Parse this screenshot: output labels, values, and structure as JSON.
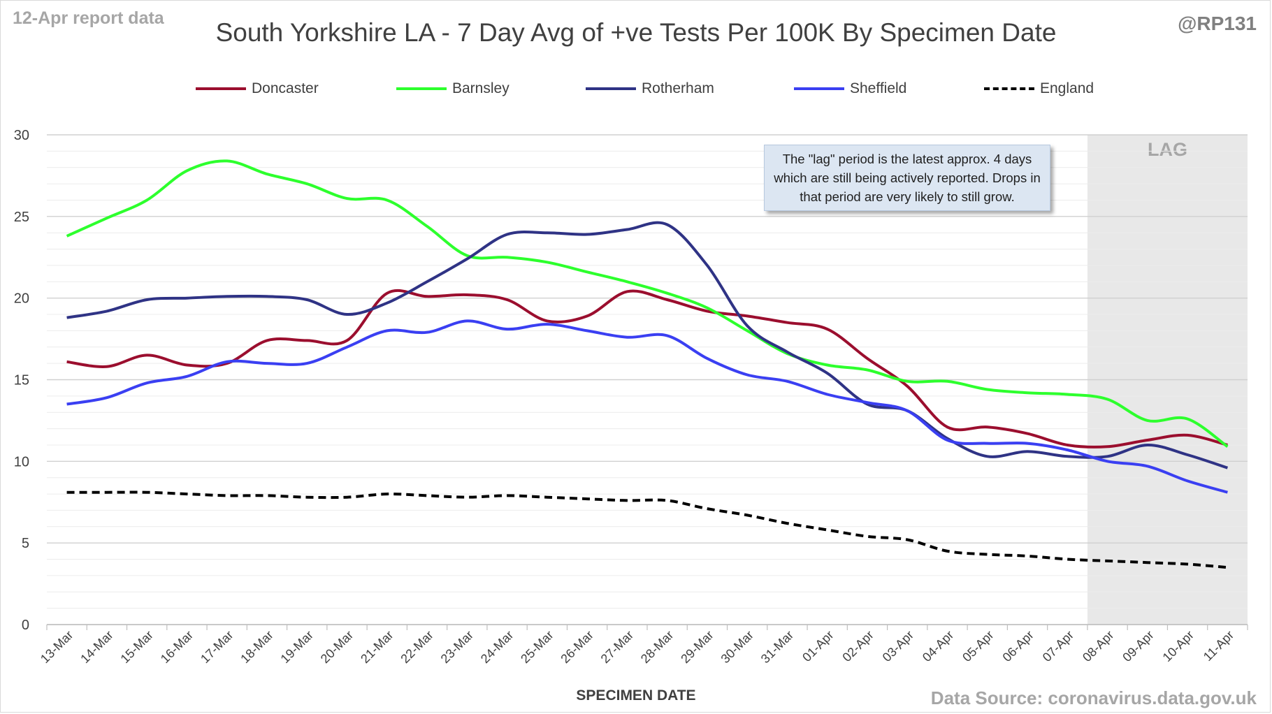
{
  "header": {
    "report_date": "12-Apr report data",
    "handle": "@RP131",
    "source": "Data Source: coronavirus.data.gov.uk"
  },
  "annotation": {
    "note": "The \"lag\" period is the latest approx. 4 days which are still being actively reported. Drops in that period are very likely to still grow.",
    "lag_label": "LAG",
    "lag_start": "08-Apr",
    "lag_end": "11-Apr"
  },
  "chart_data": {
    "type": "line",
    "title": "South Yorkshire LA - 7 Day Avg of +ve Tests Per 100K By Specimen Date",
    "xlabel": "SPECIMEN DATE",
    "ylabel": "",
    "ylim": [
      0,
      30
    ],
    "yticks": [
      0,
      5,
      10,
      15,
      20,
      25,
      30
    ],
    "grid": true,
    "legend_position": "top",
    "categories": [
      "13-Mar",
      "14-Mar",
      "15-Mar",
      "16-Mar",
      "17-Mar",
      "18-Mar",
      "19-Mar",
      "20-Mar",
      "21-Mar",
      "22-Mar",
      "23-Mar",
      "24-Mar",
      "25-Mar",
      "26-Mar",
      "27-Mar",
      "28-Mar",
      "29-Mar",
      "30-Mar",
      "31-Mar",
      "01-Apr",
      "02-Apr",
      "03-Apr",
      "04-Apr",
      "05-Apr",
      "06-Apr",
      "07-Apr",
      "08-Apr",
      "09-Apr",
      "10-Apr",
      "11-Apr"
    ],
    "series": [
      {
        "name": "Doncaster",
        "color": "#9b0e2e",
        "dash": false,
        "values": [
          16.1,
          15.8,
          16.5,
          15.9,
          16.0,
          17.4,
          17.4,
          17.4,
          20.3,
          20.1,
          20.2,
          19.9,
          18.6,
          18.9,
          20.4,
          19.9,
          19.2,
          18.9,
          18.5,
          18.1,
          16.3,
          14.6,
          12.1,
          12.1,
          11.7,
          11.0,
          10.9,
          11.3,
          11.6,
          11.0
        ]
      },
      {
        "name": "Barnsley",
        "color": "#2dff2d",
        "dash": false,
        "values": [
          23.8,
          24.9,
          26.0,
          27.8,
          28.4,
          27.6,
          27.0,
          26.1,
          26.0,
          24.4,
          22.6,
          22.5,
          22.2,
          21.6,
          21.0,
          20.3,
          19.4,
          18.0,
          16.6,
          15.9,
          15.6,
          14.9,
          14.9,
          14.4,
          14.2,
          14.1,
          13.8,
          12.5,
          12.6,
          10.9
        ]
      },
      {
        "name": "Rotherham",
        "color": "#2f3385",
        "dash": false,
        "values": [
          18.8,
          19.2,
          19.9,
          20.0,
          20.1,
          20.1,
          19.9,
          19.0,
          19.7,
          21.0,
          22.4,
          23.9,
          24.0,
          23.9,
          24.2,
          24.5,
          22.0,
          18.3,
          16.7,
          15.4,
          13.5,
          13.1,
          11.4,
          10.3,
          10.6,
          10.3,
          10.3,
          11.0,
          10.4,
          9.6
        ]
      },
      {
        "name": "Sheffield",
        "color": "#3a3ff2",
        "dash": false,
        "values": [
          13.5,
          13.9,
          14.8,
          15.2,
          16.1,
          16.0,
          16.0,
          17.0,
          18.0,
          17.9,
          18.6,
          18.1,
          18.4,
          18.0,
          17.6,
          17.7,
          16.3,
          15.3,
          14.9,
          14.1,
          13.6,
          13.1,
          11.3,
          11.1,
          11.1,
          10.7,
          10.0,
          9.7,
          8.8,
          8.1
        ]
      },
      {
        "name": "England",
        "color": "#000000",
        "dash": true,
        "values": [
          8.1,
          8.1,
          8.1,
          8.0,
          7.9,
          7.9,
          7.8,
          7.8,
          8.0,
          7.9,
          7.8,
          7.9,
          7.8,
          7.7,
          7.6,
          7.6,
          7.1,
          6.7,
          6.2,
          5.8,
          5.4,
          5.2,
          4.5,
          4.3,
          4.2,
          4.0,
          3.9,
          3.8,
          3.7,
          3.5
        ]
      }
    ]
  }
}
